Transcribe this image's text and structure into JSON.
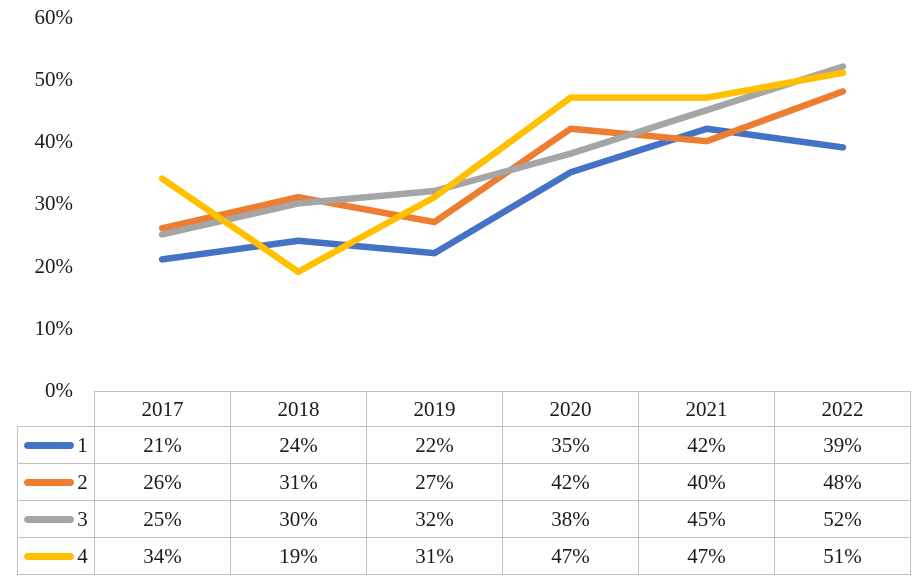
{
  "chart_data": {
    "type": "line",
    "categories": [
      "2017",
      "2018",
      "2019",
      "2020",
      "2021",
      "2022"
    ],
    "series": [
      {
        "name": "1",
        "color": "#4472C4",
        "values": [
          21,
          24,
          22,
          35,
          42,
          39
        ]
      },
      {
        "name": "2",
        "color": "#ED7D31",
        "values": [
          26,
          31,
          27,
          42,
          40,
          48
        ]
      },
      {
        "name": "3",
        "color": "#A5A5A5",
        "values": [
          25,
          30,
          32,
          38,
          45,
          52
        ]
      },
      {
        "name": "4",
        "color": "#FFC000",
        "values": [
          34,
          19,
          31,
          47,
          47,
          51
        ]
      }
    ],
    "title": "",
    "xlabel": "",
    "ylabel": "",
    "ylim": [
      0,
      60
    ],
    "y_tick_step": 10,
    "y_tick_labels": [
      "0%",
      "10%",
      "20%",
      "30%",
      "40%",
      "50%",
      "60%"
    ],
    "grid": false,
    "legend_position": "data-table-left",
    "value_format": "percent"
  },
  "table": {
    "column_headers": [
      "2017",
      "2018",
      "2019",
      "2020",
      "2021",
      "2022"
    ],
    "rows": [
      {
        "legend": "1",
        "color": "#4472C4",
        "values": [
          "21%",
          "24%",
          "22%",
          "35%",
          "42%",
          "39%"
        ]
      },
      {
        "legend": "2",
        "color": "#ED7D31",
        "values": [
          "26%",
          "31%",
          "27%",
          "42%",
          "40%",
          "48%"
        ]
      },
      {
        "legend": "3",
        "color": "#A5A5A5",
        "values": [
          "25%",
          "30%",
          "32%",
          "38%",
          "45%",
          "52%"
        ]
      },
      {
        "legend": "4",
        "color": "#FFC000",
        "values": [
          "34%",
          "19%",
          "31%",
          "47%",
          "47%",
          "51%"
        ]
      }
    ]
  }
}
